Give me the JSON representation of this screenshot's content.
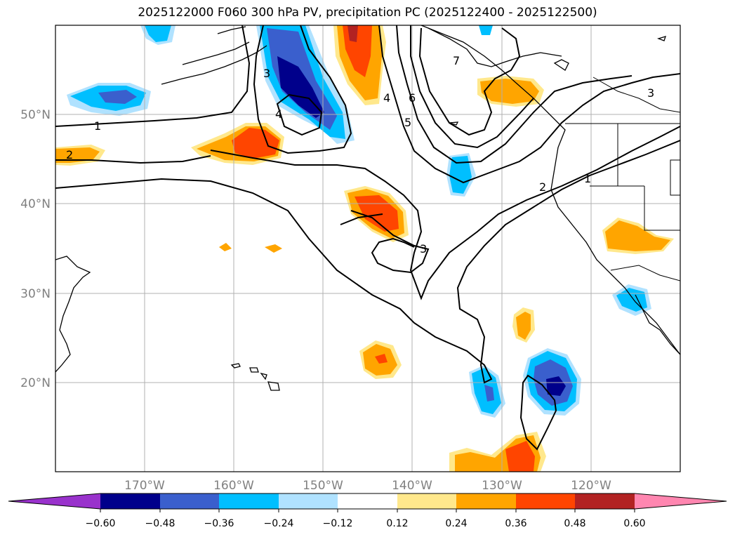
{
  "title": "2025122000 F060 300 hPa PV, precipitation PC (2025122400 - 2025122500)",
  "map": {
    "lat_ticks": [
      "50°N",
      "40°N",
      "30°N",
      "20°N"
    ],
    "lon_ticks": [
      "170°W",
      "160°W",
      "150°W",
      "140°W",
      "130°W",
      "120°W"
    ],
    "lat_values": [
      50,
      40,
      30,
      20
    ],
    "lon_values": [
      -170,
      -160,
      -150,
      -140,
      -130,
      -120
    ],
    "extent": {
      "lon_min": -180,
      "lon_max": -110,
      "lat_min": 10,
      "lat_max": 60
    },
    "gridlines": true
  },
  "contours": {
    "field": "300 hPa PV",
    "labels": [
      "1",
      "1",
      "2",
      "2",
      "3",
      "3",
      "3",
      "4",
      "4",
      "5",
      "6",
      "7"
    ]
  },
  "colorbar": {
    "ticks": [
      "−0.60",
      "−0.48",
      "−0.36",
      "−0.24",
      "−0.12",
      "0.12",
      "0.24",
      "0.36",
      "0.48",
      "0.60"
    ],
    "colors": [
      "#9932cc",
      "#00008b",
      "#3a5fcd",
      "#00bfff",
      "#b0e2ff",
      "#ffffff",
      "#ffe88c",
      "#ffa500",
      "#ff4500",
      "#b22222",
      "#ff86b0"
    ]
  },
  "colors": {
    "grid": "#b0b0b0",
    "contour": "#000000",
    "coast": "#000000"
  }
}
